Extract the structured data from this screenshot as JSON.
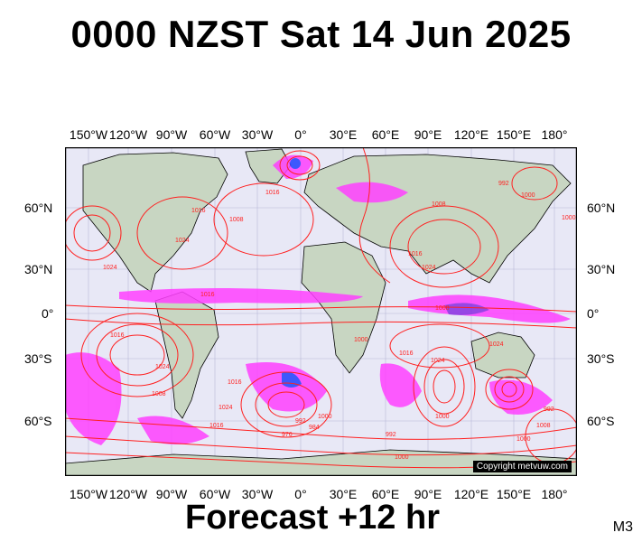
{
  "title": "0000 NZST Sat 14 Jun 2025",
  "subtitle": "Forecast +12 hr",
  "corner_label": "M3",
  "copyright": "Copyright metvuw.com",
  "lon_labels": [
    "150°W",
    "120°W",
    "90°W",
    "60°W",
    "30°W",
    "0°",
    "30°E",
    "60°E",
    "90°E",
    "120°E",
    "150°E",
    "180°"
  ],
  "lat_labels": [
    "60°N",
    "30°N",
    "0°",
    "30°S",
    "60°S"
  ],
  "isobar_labels": [
    "1016",
    "1016",
    "1024",
    "1024",
    "1008",
    "1016",
    "1016",
    "1024",
    "1008",
    "992",
    "1000",
    "1008",
    "1000",
    "1016",
    "1024",
    "1008",
    "1000",
    "1016",
    "1024",
    "1016",
    "1024",
    "1016",
    "1000",
    "1024",
    "1000",
    "992",
    "1008",
    "1000",
    "992",
    "984",
    "976",
    "1000",
    "992"
  ],
  "colors": {
    "ocean": "#e8e8f6",
    "land": "#c8d6c2",
    "isobar": "#ff2020",
    "coast": "#000000",
    "rain_light": "#ff40ff",
    "rain_med": "#8a2be2",
    "rain_heavy": "#2040ff"
  }
}
